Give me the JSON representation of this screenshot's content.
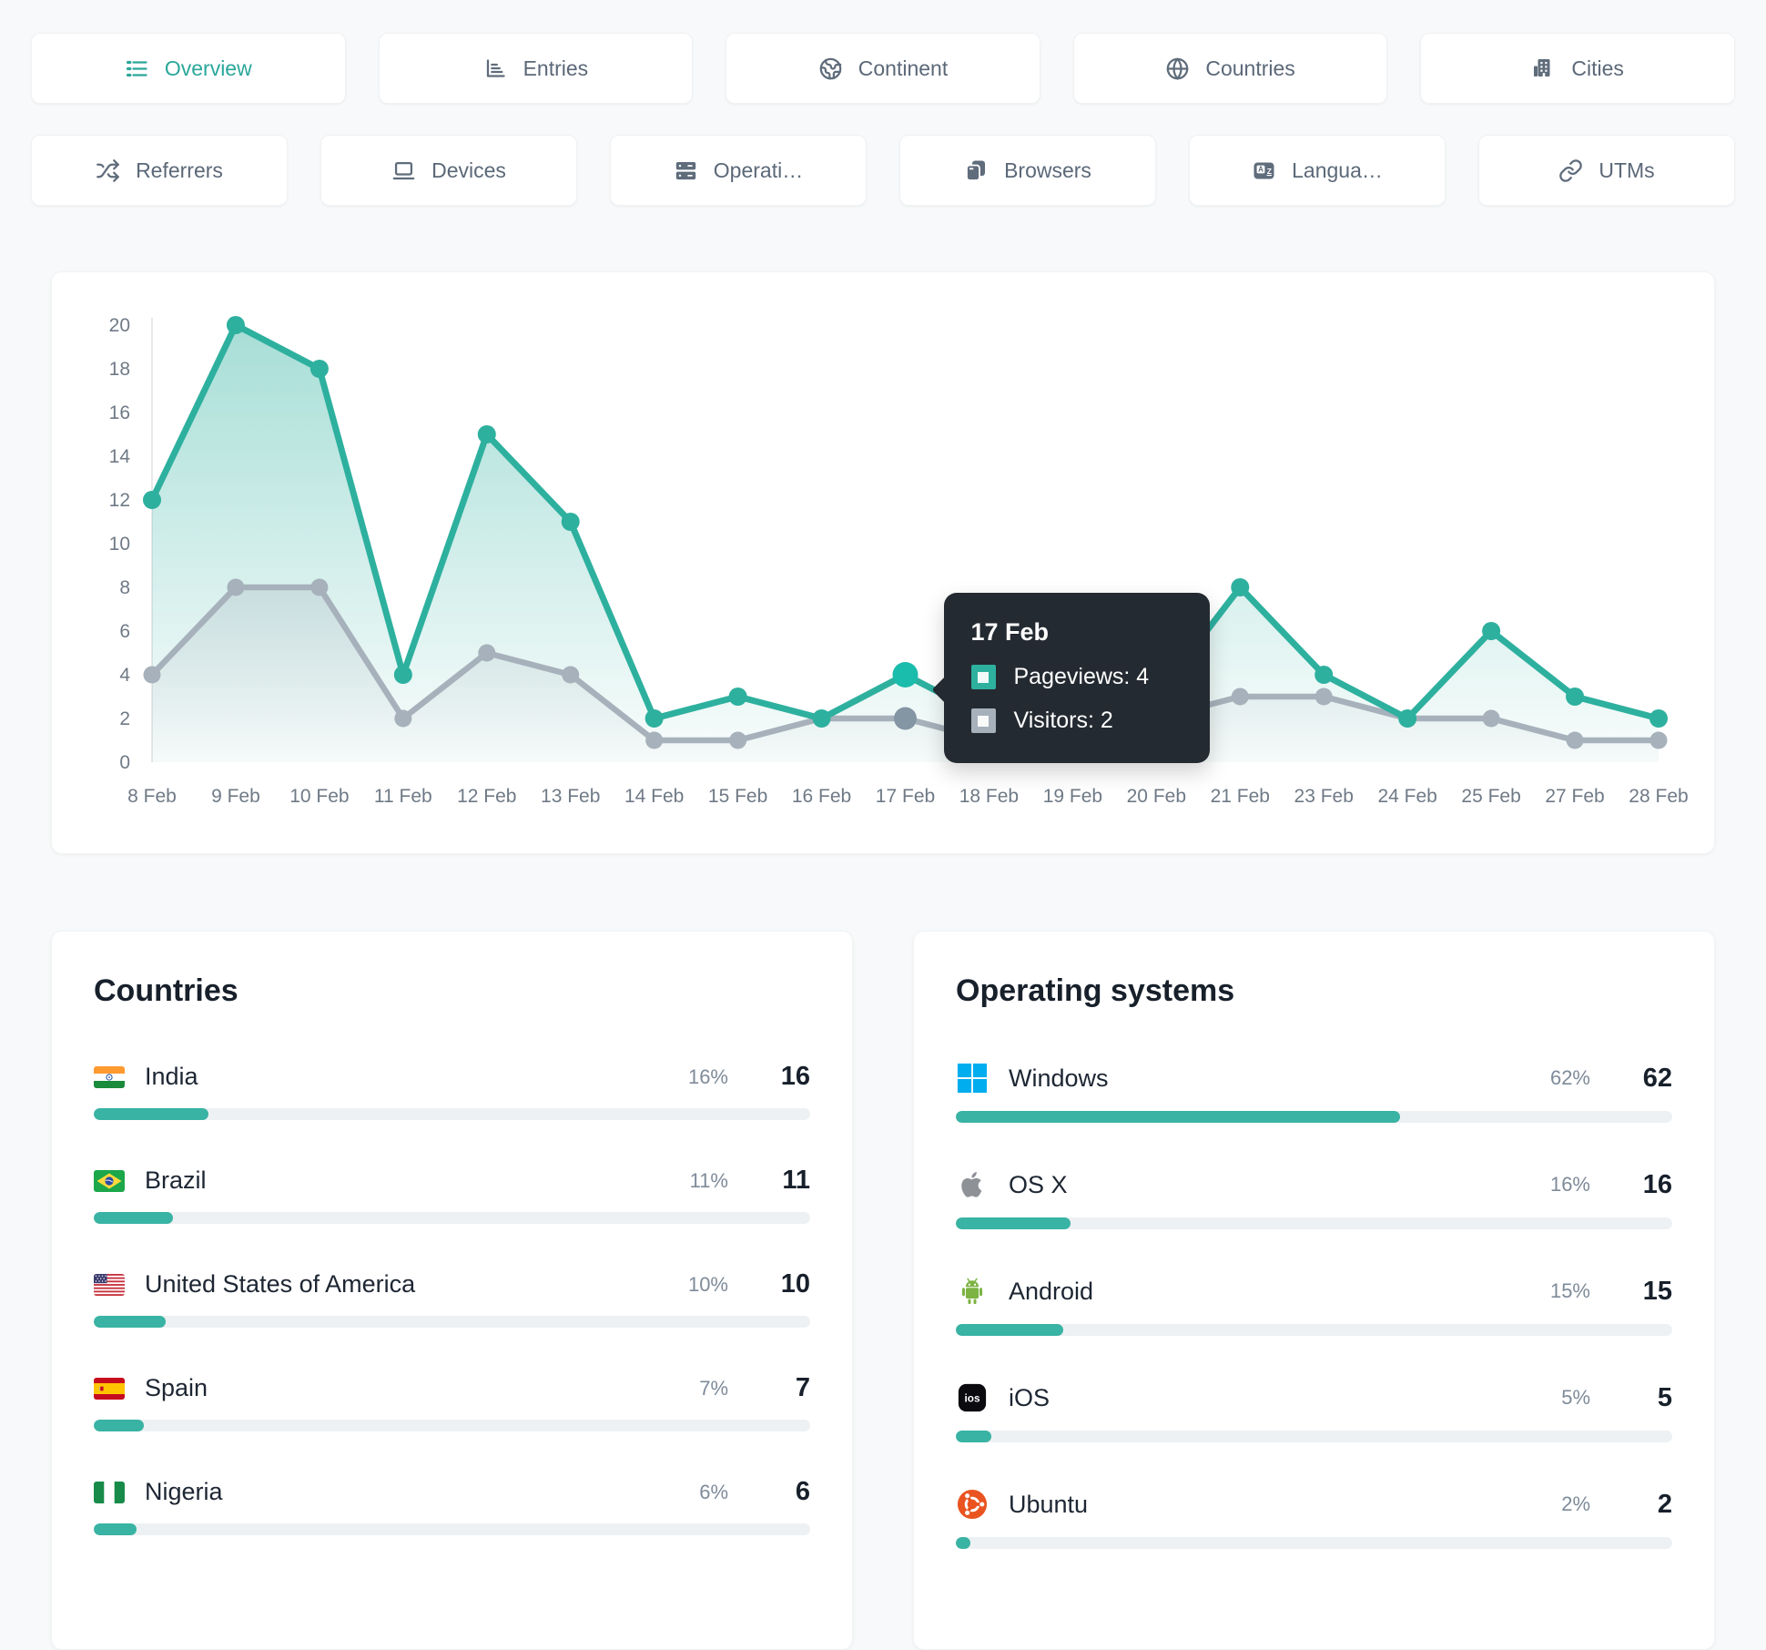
{
  "colors": {
    "accent": "#2aa79b",
    "pageviews": "#2eb09f",
    "pageviews_active": "#1abcab",
    "visitors": "#a6b1bb",
    "visitors_active": "#8495a4",
    "bar_fill": "#39b3a3",
    "tooltip_bg": "#242a31",
    "windows_blue": "#00adef",
    "android_green": "#7cb342",
    "ubuntu_orange": "#e95420"
  },
  "tabs": {
    "row1": [
      {
        "label": "Overview",
        "icon": "list-icon",
        "active": true
      },
      {
        "label": "Entries",
        "icon": "bar-chart-icon",
        "active": false
      },
      {
        "label": "Continent",
        "icon": "earth-icon",
        "active": false
      },
      {
        "label": "Countries",
        "icon": "globe-icon",
        "active": false
      },
      {
        "label": "Cities",
        "icon": "buildings-icon",
        "active": false
      }
    ],
    "row2": [
      {
        "label": "Referrers",
        "icon": "shuffle-icon",
        "active": false
      },
      {
        "label": "Devices",
        "icon": "laptop-icon",
        "active": false
      },
      {
        "label": "Operati…",
        "icon": "server-icon",
        "active": false
      },
      {
        "label": "Browsers",
        "icon": "windows-stack-icon",
        "active": false
      },
      {
        "label": "Langua…",
        "icon": "translate-icon",
        "active": false
      },
      {
        "label": "UTMs",
        "icon": "link-icon",
        "active": false
      }
    ]
  },
  "chart_data": {
    "type": "line",
    "title": "",
    "xlabel": "",
    "ylabel": "",
    "grid": false,
    "legend_position": "none",
    "ylim": [
      0,
      20
    ],
    "yticks": [
      0,
      2,
      4,
      6,
      8,
      10,
      12,
      14,
      16,
      18,
      20
    ],
    "x": [
      "8 Feb",
      "9 Feb",
      "10 Feb",
      "11 Feb",
      "12 Feb",
      "13 Feb",
      "14 Feb",
      "15 Feb",
      "16 Feb",
      "17 Feb",
      "18 Feb",
      "19 Feb",
      "20 Feb",
      "21 Feb",
      "23 Feb",
      "24 Feb",
      "25 Feb",
      "27 Feb",
      "28 Feb"
    ],
    "series": [
      {
        "name": "Pageviews",
        "color": "#2eb09f",
        "values": [
          12,
          20,
          18,
          4,
          15,
          11,
          2,
          3,
          2,
          4,
          2,
          3,
          3,
          8,
          4,
          2,
          6,
          3,
          2
        ]
      },
      {
        "name": "Visitors",
        "color": "#a6b1bb",
        "values": [
          4,
          8,
          8,
          2,
          5,
          4,
          1,
          1,
          2,
          2,
          1,
          2,
          2,
          3,
          3,
          2,
          2,
          1,
          1
        ]
      }
    ]
  },
  "tooltip": {
    "date": "17 Feb",
    "anchor_index": 9,
    "items": [
      {
        "series": "Pageviews",
        "value": 4
      },
      {
        "series": "Visitors",
        "value": 2
      }
    ]
  },
  "panels": {
    "countries": {
      "title": "Countries",
      "rows": [
        {
          "name": "India",
          "flag": "india",
          "pct": 16,
          "pct_label": "16%",
          "count": "16"
        },
        {
          "name": "Brazil",
          "flag": "brazil",
          "pct": 11,
          "pct_label": "11%",
          "count": "11"
        },
        {
          "name": "United States of America",
          "flag": "usa",
          "pct": 10,
          "pct_label": "10%",
          "count": "10"
        },
        {
          "name": "Spain",
          "flag": "spain",
          "pct": 7,
          "pct_label": "7%",
          "count": "7"
        },
        {
          "name": "Nigeria",
          "flag": "nigeria",
          "pct": 6,
          "pct_label": "6%",
          "count": "6"
        }
      ]
    },
    "os": {
      "title": "Operating systems",
      "rows": [
        {
          "name": "Windows",
          "icon": "windows",
          "pct": 62,
          "pct_label": "62%",
          "count": "62"
        },
        {
          "name": "OS X",
          "icon": "apple",
          "pct": 16,
          "pct_label": "16%",
          "count": "16"
        },
        {
          "name": "Android",
          "icon": "android",
          "pct": 15,
          "pct_label": "15%",
          "count": "15"
        },
        {
          "name": "iOS",
          "icon": "ios",
          "pct": 5,
          "pct_label": "5%",
          "count": "5"
        },
        {
          "name": "Ubuntu",
          "icon": "ubuntu",
          "pct": 2,
          "pct_label": "2%",
          "count": "2"
        }
      ]
    }
  }
}
